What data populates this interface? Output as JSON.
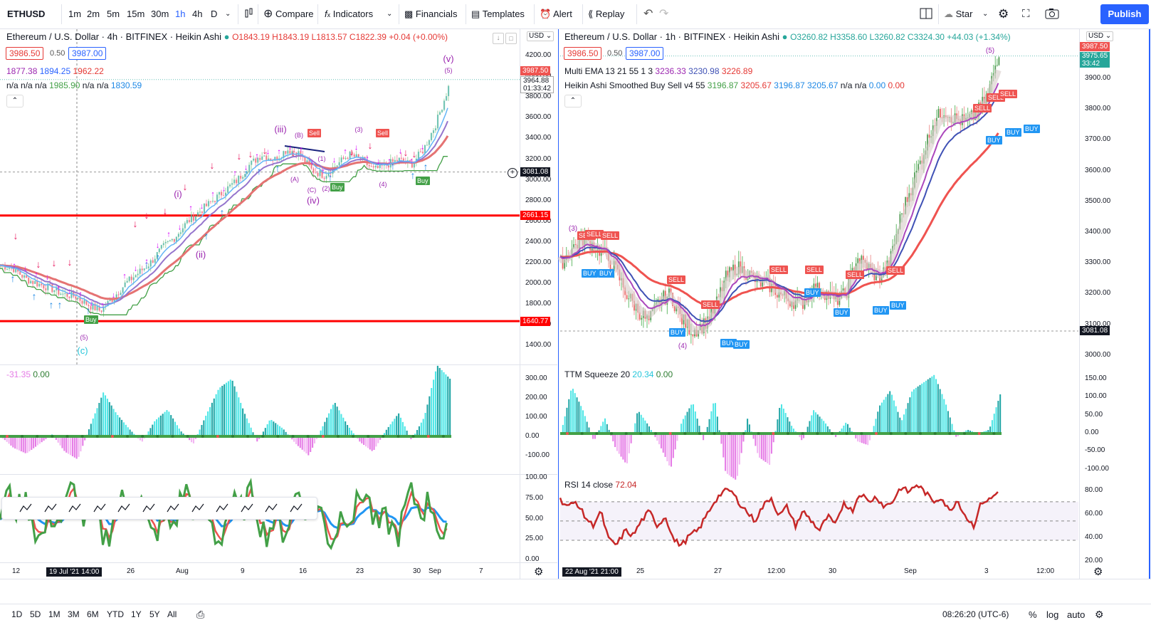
{
  "toolbar": {
    "symbol": "ETHUSD",
    "intervals": [
      "1m",
      "2m",
      "5m",
      "15m",
      "30m",
      "1h",
      "4h",
      "D"
    ],
    "active_interval": "1h",
    "compare": "Compare",
    "indicators": "Indicators",
    "financials": "Financials",
    "templates": "Templates",
    "alert": "Alert",
    "replay": "Replay",
    "star": "Star",
    "publish": "Publish"
  },
  "left_chart": {
    "title": "Ethereum / U.S. Dollar · 4h · BITFINEX · Heikin Ashi",
    "ohlc": "O1843.19 H1843.19 L1813.57 C1822.39 +0.04 (+0.00%)",
    "bid": "3986.50",
    "spread": "0.50",
    "ask": "3987.00",
    "ema_values": [
      "1877.38",
      "1894.25",
      "1962.22"
    ],
    "line2_prefix": "n/a n/a n/a",
    "line2_val1": "1985.90",
    "line2_mid": "n/a n/a",
    "line2_val2": "1830.59",
    "currency": "USD",
    "price_axis": [
      "4200.00",
      "4000.00",
      "3800.00",
      "3600.00",
      "3400.00",
      "3200.00",
      "3000.00",
      "2800.00",
      "2600.00",
      "2400.00",
      "2200.00",
      "2000.00",
      "1800.00",
      "1600.00",
      "1400.00"
    ],
    "tag_last": "3987.50",
    "tag_curr": "3964.88",
    "tag_countdown": "01:33:42",
    "tag_crosshair": "3081.08",
    "tag_res": "2661.15",
    "tag_sup": "1640.77",
    "elliott_labels": [
      "(v)",
      "(5)",
      "(iii)",
      "(B)",
      "(1)",
      "(3)",
      "(A)",
      "(C)",
      "(2)",
      "(4)",
      "(iv)",
      "(i)",
      "(ii)",
      "(5)",
      "(c)"
    ],
    "sell_labels": [
      "Sell",
      "Sell"
    ],
    "buy_labels": [
      "Buy",
      "Buy",
      "Buy"
    ],
    "osc_title": "-31.35",
    "osc_value": "0.00",
    "osc_axis": [
      "300.00",
      "200.00",
      "100.00",
      "0.00",
      "-100.00"
    ],
    "rsi_axis": [
      "100.00",
      "75.00",
      "50.00",
      "25.00",
      "0.00"
    ],
    "time_axis": [
      "12",
      "19 Jul '21  14:00",
      "26",
      "Aug",
      "9",
      "16",
      "23",
      "30",
      "Sep",
      "7"
    ]
  },
  "right_chart": {
    "title": "Ethereum / U.S. Dollar · 1h · BITFINEX · Heikin Ashi",
    "ohlc": "O3260.82 H3358.60 L3260.82 C3324.30 +44.03 (+1.34%)",
    "bid": "3986.50",
    "spread": "0.50",
    "ask": "3987.00",
    "ema_title": "Multi EMA 13 21 55 1 3",
    "ema_values": [
      "3236.33",
      "3230.98",
      "3226.89"
    ],
    "ha_title": "Heikin Ashi Smoothed Buy Sell v4 55",
    "ha_values": [
      "3196.87",
      "3205.67",
      "3196.87",
      "3205.67"
    ],
    "ha_na": "n/a n/a",
    "ha_zero1": "0.00",
    "ha_zero2": "0.00",
    "currency": "USD",
    "price_axis": [
      "3900.00",
      "3800.00",
      "3700.00",
      "3600.00",
      "3500.00",
      "3400.00",
      "3300.00",
      "3200.00",
      "3100.00",
      "3000.00"
    ],
    "tag_last": "3987.50",
    "tag_curr": "3975.65",
    "tag_countdown": "33:42",
    "tag_crosshair": "3081.08",
    "sell_labels": [
      "SELL",
      "SELL",
      "SELL",
      "SELL",
      "SELL",
      "SELL",
      "SELL",
      "SELL",
      "SELL",
      "SELL",
      "SELL",
      "SELL"
    ],
    "buy_labels": [
      "BUY",
      "BUY",
      "BUY",
      "BUY",
      "BUY",
      "BUY",
      "BUY",
      "BUY",
      "BUY",
      "BUY",
      "BUY",
      "BUY"
    ],
    "wave_labels": [
      "(3)",
      "(4)",
      "(5)"
    ],
    "ttm_title": "TTM Squeeze 20",
    "ttm_value1": "20.34",
    "ttm_value2": "0.00",
    "ttm_axis": [
      "150.00",
      "100.00",
      "50.00",
      "0.00",
      "-50.00",
      "-100.00"
    ],
    "rsi_title": "RSI 14 close",
    "rsi_value": "72.04",
    "rsi_axis": [
      "80.00",
      "60.00",
      "40.00",
      "20.00"
    ],
    "time_axis": [
      "22 Aug '21  21:00",
      "25",
      "27",
      "12:00",
      "30",
      "Sep",
      "3",
      "12:00"
    ]
  },
  "bottom": {
    "ranges": [
      "1D",
      "5D",
      "1M",
      "3M",
      "6M",
      "YTD",
      "1Y",
      "5Y",
      "All"
    ],
    "time": "08:26:20 (UTC-6)",
    "pct": "%",
    "log": "log",
    "auto": "auto"
  },
  "colors": {
    "accent": "#2962ff",
    "red_line": "#f00",
    "sell": "#ef5350",
    "buy_green": "#43a047",
    "buy_blue": "#2196f3",
    "ema_red": "#ef5350",
    "ema_blue": "#3f51b5",
    "ema_purple": "#9c5fb5",
    "osc_cyan": "#4ee6e6",
    "osc_magenta": "#e57be6"
  }
}
